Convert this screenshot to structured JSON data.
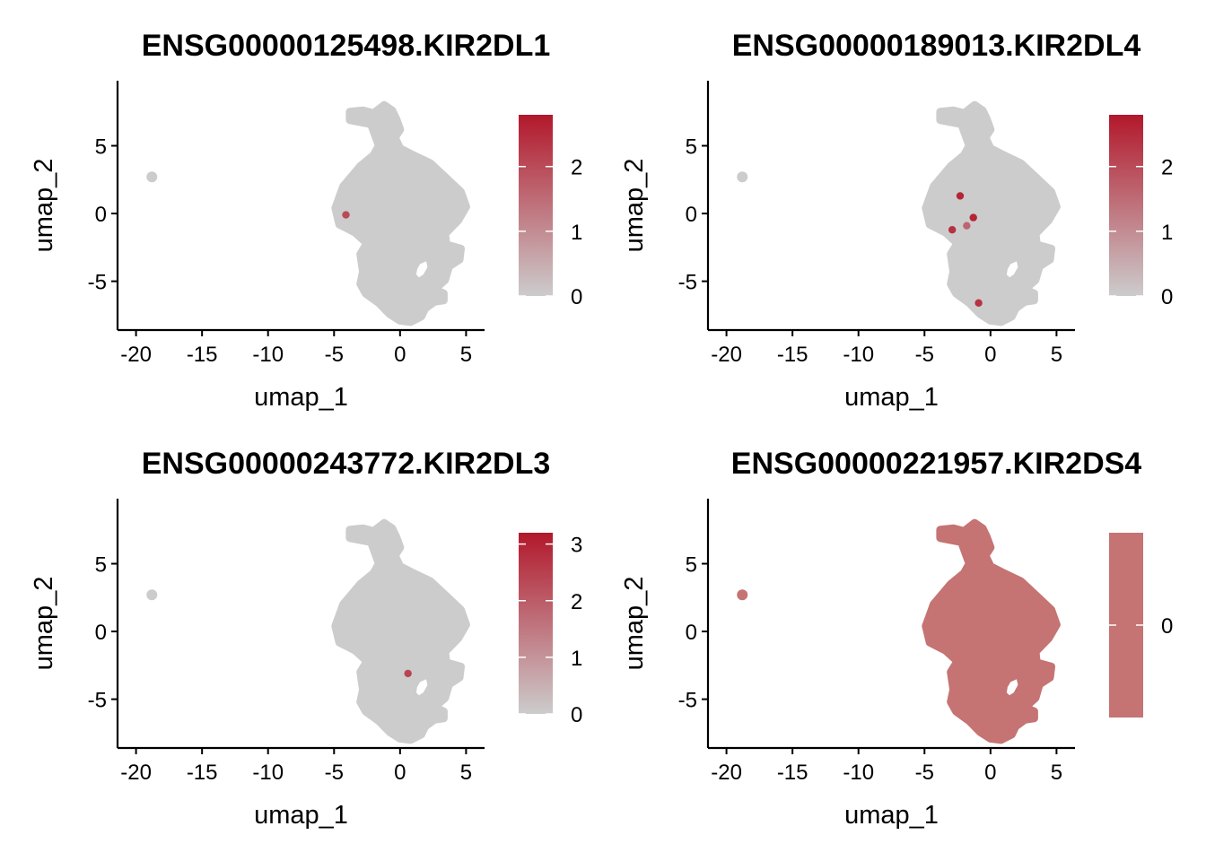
{
  "colors": {
    "low": "#cccccc",
    "high": "#b2182b",
    "mid_constant": "#c57373",
    "axis": "#000000"
  },
  "chart_data": [
    {
      "type": "scatter",
      "title": "ENSG00000125498.KIR2DL1",
      "xlabel": "umap_1",
      "ylabel": "umap_2",
      "xlim": [
        -21.4,
        6.4
      ],
      "ylim": [
        -8.6,
        9.8
      ],
      "xticks": [
        -20,
        -15,
        -10,
        -5,
        0,
        5
      ],
      "xtick_labels": [
        "-20",
        "-15",
        "-10",
        "-5",
        "0",
        "5"
      ],
      "yticks": [
        -5,
        0,
        5
      ],
      "ytick_labels": [
        "-5",
        "0",
        "5"
      ],
      "legend": {
        "position": "right",
        "min": 0,
        "max": 2.8,
        "ticks": [
          0,
          1,
          2
        ],
        "tick_labels": [
          "0",
          "1",
          "2"
        ]
      },
      "highlight_points": [
        {
          "x": -4.1,
          "y": -0.1,
          "value": 2.0
        }
      ]
    },
    {
      "type": "scatter",
      "title": "ENSG00000189013.KIR2DL4",
      "xlabel": "umap_1",
      "ylabel": "umap_2",
      "xlim": [
        -21.4,
        6.4
      ],
      "ylim": [
        -8.6,
        9.8
      ],
      "xticks": [
        -20,
        -15,
        -10,
        -5,
        0,
        5
      ],
      "xtick_labels": [
        "-20",
        "-15",
        "-10",
        "-5",
        "0",
        "5"
      ],
      "yticks": [
        -5,
        0,
        5
      ],
      "ytick_labels": [
        "-5",
        "0",
        "5"
      ],
      "legend": {
        "position": "right",
        "min": 0,
        "max": 2.8,
        "ticks": [
          0,
          1,
          2
        ],
        "tick_labels": [
          "0",
          "1",
          "2"
        ]
      },
      "highlight_points": [
        {
          "x": -2.3,
          "y": 1.3,
          "value": 2.6
        },
        {
          "x": -2.9,
          "y": -1.2,
          "value": 2.4
        },
        {
          "x": -1.3,
          "y": -0.3,
          "value": 2.6
        },
        {
          "x": -1.8,
          "y": -0.9,
          "value": 1.6
        },
        {
          "x": -0.9,
          "y": -6.6,
          "value": 2.4
        }
      ]
    },
    {
      "type": "scatter",
      "title": "ENSG00000243772.KIR2DL3",
      "xlabel": "umap_1",
      "ylabel": "umap_2",
      "xlim": [
        -21.4,
        6.4
      ],
      "ylim": [
        -8.6,
        9.8
      ],
      "xticks": [
        -20,
        -15,
        -10,
        -5,
        0,
        5
      ],
      "xtick_labels": [
        "-20",
        "-15",
        "-10",
        "-5",
        "0",
        "5"
      ],
      "yticks": [
        -5,
        0,
        5
      ],
      "ytick_labels": [
        "-5",
        "0",
        "5"
      ],
      "legend": {
        "position": "right",
        "min": 0,
        "max": 3.2,
        "ticks": [
          0,
          1,
          2,
          3
        ],
        "tick_labels": [
          "0",
          "1",
          "2",
          "3"
        ]
      },
      "highlight_points": [
        {
          "x": 0.6,
          "y": -3.1,
          "value": 2.4
        }
      ]
    },
    {
      "type": "scatter",
      "title": "ENSG00000221957.KIR2DS4",
      "xlabel": "umap_1",
      "ylabel": "umap_2",
      "xlim": [
        -21.4,
        6.4
      ],
      "ylim": [
        -8.6,
        9.8
      ],
      "xticks": [
        -20,
        -15,
        -10,
        -5,
        0,
        5
      ],
      "xtick_labels": [
        "-20",
        "-15",
        "-10",
        "-5",
        "0",
        "5"
      ],
      "yticks": [
        -5,
        0,
        5
      ],
      "ytick_labels": [
        "-5",
        "0",
        "5"
      ],
      "legend": {
        "position": "right",
        "constant": true,
        "ticks": [
          0
        ],
        "tick_labels": [
          "0"
        ]
      },
      "highlight_points": []
    }
  ],
  "cluster_shape": {
    "outline": [
      [
        -1.2,
        8.0
      ],
      [
        -0.6,
        7.6
      ],
      [
        -0.3,
        7.0
      ],
      [
        0.0,
        6.2
      ],
      [
        -0.4,
        5.6
      ],
      [
        0.0,
        4.8
      ],
      [
        1.0,
        4.3
      ],
      [
        2.3,
        3.7
      ],
      [
        3.4,
        2.7
      ],
      [
        4.6,
        1.6
      ],
      [
        5.0,
        0.5
      ],
      [
        4.4,
        -0.5
      ],
      [
        3.4,
        -1.5
      ],
      [
        3.5,
        -2.3
      ],
      [
        4.6,
        -2.6
      ],
      [
        4.5,
        -3.4
      ],
      [
        3.7,
        -3.9
      ],
      [
        3.4,
        -4.9
      ],
      [
        2.6,
        -5.6
      ],
      [
        3.3,
        -5.9
      ],
      [
        3.3,
        -6.4
      ],
      [
        2.6,
        -6.5
      ],
      [
        1.9,
        -7.0
      ],
      [
        1.6,
        -7.6
      ],
      [
        0.8,
        -8.0
      ],
      [
        0.0,
        -7.9
      ],
      [
        -0.8,
        -7.4
      ],
      [
        -1.6,
        -6.6
      ],
      [
        -2.6,
        -5.9
      ],
      [
        -3.0,
        -5.2
      ],
      [
        -2.8,
        -4.3
      ],
      [
        -3.0,
        -3.0
      ],
      [
        -2.5,
        -2.2
      ],
      [
        -3.4,
        -1.4
      ],
      [
        -4.6,
        -0.8
      ],
      [
        -4.9,
        0.4
      ],
      [
        -4.3,
        2.0
      ],
      [
        -3.0,
        3.5
      ],
      [
        -2.0,
        4.3
      ],
      [
        -1.6,
        5.0
      ],
      [
        -2.2,
        6.6
      ],
      [
        -3.8,
        6.9
      ],
      [
        -3.8,
        7.5
      ],
      [
        -2.8,
        7.6
      ],
      [
        -2.0,
        7.4
      ]
    ],
    "hole": [
      [
        1.3,
        -3.5
      ],
      [
        2.2,
        -3.1
      ],
      [
        2.4,
        -4.0
      ],
      [
        2.0,
        -4.7
      ],
      [
        1.4,
        -5.1
      ],
      [
        0.9,
        -4.6
      ],
      [
        1.0,
        -4.0
      ]
    ],
    "island": {
      "x": -18.8,
      "y": 2.7,
      "rx": 0.45,
      "ry": 0.45
    }
  }
}
